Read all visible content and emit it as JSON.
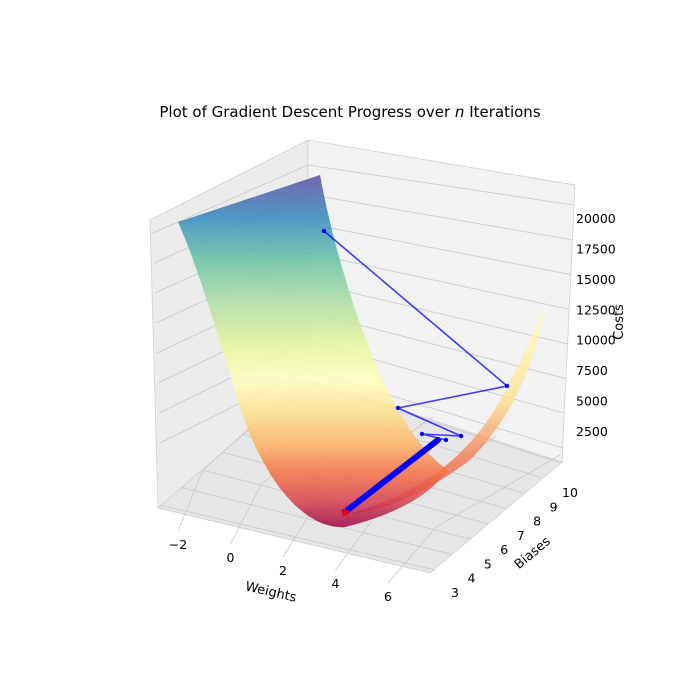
{
  "chart_data": {
    "type": "surface3d",
    "title_prefix": "Plot of Gradient Descent Progress over ",
    "title_var": "n",
    "title_suffix": " Iterations",
    "xlabel": "Weights",
    "ylabel": "Biases",
    "zlabel": "Costs",
    "x_ticks": [
      "−2",
      "0",
      "2",
      "4",
      "6"
    ],
    "y_ticks": [
      "3",
      "4",
      "5",
      "6",
      "7",
      "8",
      "9",
      "10"
    ],
    "z_ticks": [
      "2500",
      "5000",
      "7500",
      "10000",
      "12500",
      "15000",
      "17500",
      "20000"
    ],
    "xlim": [
      -3,
      7
    ],
    "ylim": [
      3,
      10
    ],
    "zlim": [
      0,
      22000
    ],
    "colormap": "Spectral",
    "path_color": "#0000ff",
    "start_marker_color": "#ff0000",
    "grid": true,
    "descent_path": [
      {
        "step": 0,
        "w": -1.6,
        "b": 3.0,
        "cost": 20000
      },
      {
        "step": 1,
        "w": 5.3,
        "b": 5.4,
        "cost": 7200
      },
      {
        "step": 2,
        "w": 1.8,
        "b": 5.0,
        "cost": 5200
      },
      {
        "step": 3,
        "w": 4.3,
        "b": 6.7,
        "cost": 2500
      },
      {
        "step": 4,
        "w": 3.0,
        "b": 6.6,
        "cost": 2600
      },
      {
        "step": 5,
        "w": 3.6,
        "b": 7.0,
        "cost": 2300
      },
      {
        "step": "n",
        "w": 2.0,
        "b": 3.6,
        "cost": 400
      }
    ]
  }
}
